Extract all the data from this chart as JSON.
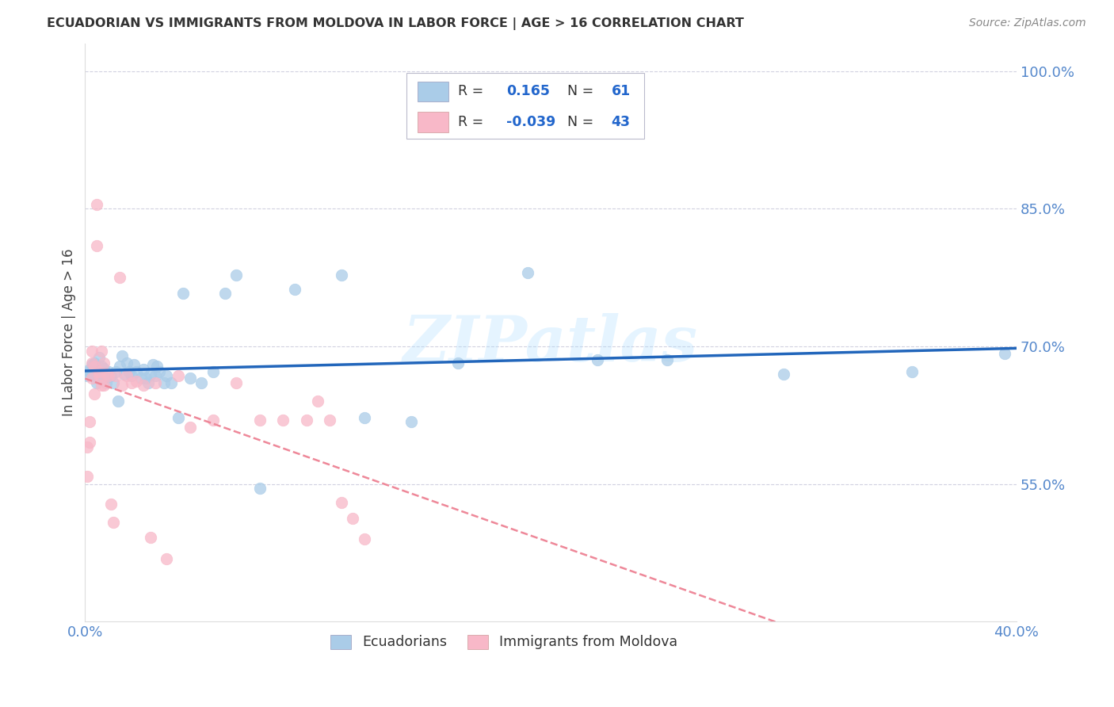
{
  "title": "ECUADORIAN VS IMMIGRANTS FROM MOLDOVA IN LABOR FORCE | AGE > 16 CORRELATION CHART",
  "source": "Source: ZipAtlas.com",
  "ylabel": "In Labor Force | Age > 16",
  "xlim": [
    0.0,
    0.4
  ],
  "ylim": [
    0.4,
    1.03
  ],
  "yticks": [
    0.55,
    0.7,
    0.85,
    1.0
  ],
  "ytick_labels": [
    "55.0%",
    "70.0%",
    "85.0%",
    "100.0%"
  ],
  "xticks": [
    0.0,
    0.05,
    0.1,
    0.15,
    0.2,
    0.25,
    0.3,
    0.35,
    0.4
  ],
  "xtick_labels": [
    "0.0%",
    "",
    "",
    "",
    "",
    "",
    "",
    "",
    "40.0%"
  ],
  "blue_R": "0.165",
  "blue_N": "61",
  "pink_R": "-0.039",
  "pink_N": "43",
  "blue_scatter_color": "#AACCE8",
  "pink_scatter_color": "#F8B8C8",
  "blue_line_color": "#2266BB",
  "pink_line_color": "#EE8899",
  "legend_label_blue": "Ecuadorians",
  "legend_label_pink": "Immigrants from Moldova",
  "watermark": "ZIPatlas",
  "background_color": "#FFFFFF",
  "tick_color": "#5588CC",
  "grid_color": "#CCCCDD",
  "blue_x": [
    0.001,
    0.002,
    0.002,
    0.003,
    0.003,
    0.004,
    0.004,
    0.005,
    0.005,
    0.006,
    0.006,
    0.007,
    0.007,
    0.008,
    0.008,
    0.009,
    0.009,
    0.01,
    0.011,
    0.012,
    0.013,
    0.014,
    0.015,
    0.016,
    0.017,
    0.018,
    0.019,
    0.02,
    0.021,
    0.022,
    0.024,
    0.025,
    0.026,
    0.027,
    0.028,
    0.029,
    0.03,
    0.031,
    0.032,
    0.034,
    0.035,
    0.037,
    0.04,
    0.042,
    0.045,
    0.05,
    0.055,
    0.06,
    0.065,
    0.075,
    0.09,
    0.11,
    0.12,
    0.14,
    0.16,
    0.19,
    0.22,
    0.25,
    0.3,
    0.355,
    0.395
  ],
  "blue_y": [
    0.668,
    0.672,
    0.675,
    0.67,
    0.68,
    0.668,
    0.682,
    0.674,
    0.66,
    0.672,
    0.688,
    0.672,
    0.678,
    0.665,
    0.676,
    0.668,
    0.66,
    0.672,
    0.668,
    0.66,
    0.672,
    0.64,
    0.678,
    0.69,
    0.67,
    0.682,
    0.672,
    0.668,
    0.68,
    0.672,
    0.665,
    0.675,
    0.665,
    0.66,
    0.67,
    0.68,
    0.668,
    0.678,
    0.672,
    0.66,
    0.668,
    0.66,
    0.622,
    0.758,
    0.665,
    0.66,
    0.672,
    0.758,
    0.778,
    0.545,
    0.762,
    0.778,
    0.622,
    0.618,
    0.682,
    0.78,
    0.685,
    0.685,
    0.67,
    0.672,
    0.692
  ],
  "pink_x": [
    0.001,
    0.001,
    0.002,
    0.002,
    0.003,
    0.003,
    0.003,
    0.004,
    0.004,
    0.005,
    0.005,
    0.006,
    0.006,
    0.007,
    0.007,
    0.008,
    0.008,
    0.009,
    0.01,
    0.011,
    0.012,
    0.013,
    0.015,
    0.016,
    0.018,
    0.02,
    0.022,
    0.025,
    0.028,
    0.03,
    0.035,
    0.04,
    0.045,
    0.055,
    0.065,
    0.075,
    0.085,
    0.095,
    0.1,
    0.105,
    0.11,
    0.115,
    0.12
  ],
  "pink_y": [
    0.59,
    0.558,
    0.618,
    0.595,
    0.682,
    0.695,
    0.665,
    0.678,
    0.648,
    0.855,
    0.81,
    0.672,
    0.668,
    0.695,
    0.658,
    0.682,
    0.658,
    0.67,
    0.668,
    0.528,
    0.508,
    0.668,
    0.775,
    0.658,
    0.668,
    0.66,
    0.662,
    0.658,
    0.492,
    0.66,
    0.468,
    0.668,
    0.612,
    0.62,
    0.66,
    0.62,
    0.62,
    0.62,
    0.64,
    0.62,
    0.53,
    0.512,
    0.49
  ]
}
